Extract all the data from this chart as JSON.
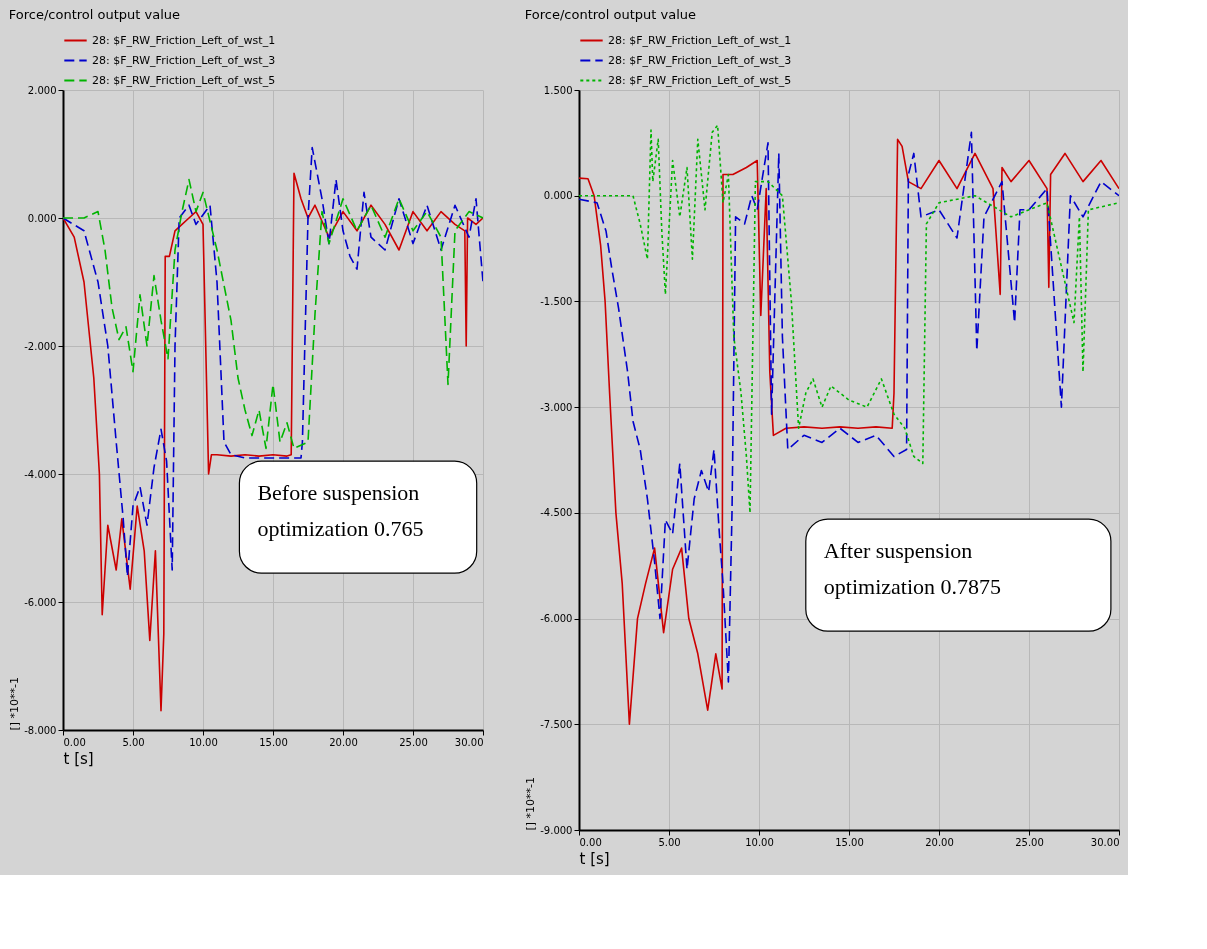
{
  "chart_data": [
    {
      "type": "line",
      "title": "Force/control output value",
      "xlabel": "t [s]",
      "ylabel": "[] *10**-1",
      "legend": "top left",
      "grid": true,
      "xlim": [
        0,
        30
      ],
      "ylim": [
        -8,
        2
      ],
      "xticks": [
        {
          "value": 0,
          "label": "0.00"
        },
        {
          "value": 5,
          "label": "5.00"
        },
        {
          "value": 10,
          "label": "10.00"
        },
        {
          "value": 15,
          "label": "15.00"
        },
        {
          "value": 20,
          "label": "20.00"
        },
        {
          "value": 25,
          "label": "25.00"
        },
        {
          "value": 30,
          "label": "30.00"
        }
      ],
      "yticks": [
        {
          "value": 2,
          "label": "2.000"
        },
        {
          "value": 0,
          "label": "0.000"
        },
        {
          "value": -2,
          "label": "-2.000"
        },
        {
          "value": -4,
          "label": "-4.000"
        },
        {
          "value": -6,
          "label": "-6.000"
        },
        {
          "value": -8,
          "label": "-8.000"
        }
      ],
      "annotations": [
        "Before suspension optimization 0.765"
      ],
      "series": [
        {
          "name": "28: $F_RW_Friction_Left_of_wst_1",
          "color": "#cc0000",
          "line_style": "solid",
          "x": [
            0,
            0.8,
            1.5,
            2.2,
            2.6,
            2.8,
            3.2,
            3.8,
            4.2,
            4.8,
            5.3,
            5.8,
            6.2,
            6.6,
            7.0,
            7.2,
            7.3,
            7.6,
            8.0,
            8.5,
            9.0,
            9.5,
            10.0,
            10.4,
            10.6,
            11.0,
            12.0,
            13.0,
            14.0,
            15.0,
            16.0,
            16.3,
            16.5,
            17.0,
            17.5,
            18.0,
            19.0,
            20.0,
            21.0,
            22.0,
            23.0,
            24.0,
            25.0,
            26.0,
            27.0,
            28.0,
            28.7,
            28.8,
            28.9,
            29.5,
            30.0
          ],
          "values": [
            0,
            -0.3,
            -1.0,
            -2.5,
            -4.0,
            -6.2,
            -4.8,
            -5.5,
            -4.7,
            -5.8,
            -4.5,
            -5.2,
            -6.6,
            -5.2,
            -7.7,
            -6.5,
            -0.6,
            -0.6,
            -0.2,
            -0.1,
            0.0,
            0.1,
            -0.1,
            -4.0,
            -3.7,
            -3.7,
            -3.72,
            -3.7,
            -3.72,
            -3.7,
            -3.72,
            -3.7,
            0.7,
            0.3,
            0.0,
            0.2,
            -0.3,
            0.1,
            -0.2,
            0.2,
            -0.1,
            -0.5,
            0.1,
            -0.2,
            0.1,
            -0.1,
            -0.2,
            -2.0,
            0.0,
            -0.1,
            0.0
          ]
        },
        {
          "name": "28: $F_RW_Friction_Left_of_wst_3",
          "color": "#0000cc",
          "line_style": "dashed",
          "x": [
            0,
            1.5,
            2.5,
            3.2,
            3.8,
            4.3,
            4.6,
            5.0,
            5.5,
            6.0,
            6.5,
            7.0,
            7.4,
            7.8,
            8.0,
            8.3,
            9.0,
            9.5,
            10.5,
            11.0,
            11.5,
            12.0,
            13.0,
            14.0,
            15.0,
            16.0,
            17.0,
            17.1,
            17.5,
            17.8,
            18.5,
            19.0,
            19.5,
            20.0,
            20.5,
            21.0,
            21.5,
            22.0,
            23.0,
            24.0,
            25.0,
            26.0,
            27.0,
            28.0,
            29.0,
            29.5,
            30.0
          ],
          "values": [
            0,
            -0.2,
            -1.0,
            -2.0,
            -3.5,
            -4.7,
            -5.6,
            -4.5,
            -4.2,
            -4.8,
            -3.9,
            -3.3,
            -3.8,
            -5.5,
            -2.0,
            0.0,
            0.2,
            -0.1,
            0.2,
            -1.0,
            -3.5,
            -3.7,
            -3.75,
            -3.75,
            -3.75,
            -3.75,
            -3.75,
            -3.5,
            0.0,
            1.1,
            0.3,
            -0.4,
            0.6,
            -0.2,
            -0.6,
            -0.8,
            0.4,
            -0.3,
            -0.5,
            0.3,
            -0.4,
            0.2,
            -0.5,
            0.2,
            -0.3,
            0.3,
            -1.0
          ]
        },
        {
          "name": "28: $F_RW_Friction_Left_of_wst_5",
          "color": "#00b400",
          "line_style": "dashed",
          "x": [
            0,
            1.5,
            2.5,
            3.0,
            3.5,
            4.0,
            4.5,
            5.0,
            5.5,
            6.0,
            6.5,
            7.0,
            7.5,
            8.0,
            8.5,
            9.0,
            9.5,
            10.0,
            11.0,
            12.0,
            12.5,
            13.0,
            13.5,
            14.0,
            14.5,
            15.0,
            15.5,
            16.0,
            16.5,
            17.5,
            18.0,
            18.5,
            19.0,
            20.0,
            21.0,
            22.0,
            23.0,
            24.0,
            25.0,
            26.0,
            27.0,
            27.5,
            28.0,
            29.0,
            30.0
          ],
          "values": [
            0,
            0,
            0.1,
            -0.5,
            -1.4,
            -1.9,
            -1.7,
            -2.4,
            -1.2,
            -2.0,
            -0.9,
            -1.6,
            -2.2,
            -0.5,
            0.1,
            0.6,
            0.1,
            0.4,
            -0.5,
            -1.6,
            -2.5,
            -3.0,
            -3.4,
            -3.0,
            -3.6,
            -2.6,
            -3.5,
            -3.2,
            -3.6,
            -3.5,
            -1.5,
            0.1,
            -0.4,
            0.3,
            -0.2,
            0.2,
            -0.3,
            0.3,
            -0.2,
            0.1,
            -0.3,
            -2.6,
            -0.2,
            0.1,
            0.0
          ]
        }
      ]
    },
    {
      "type": "line",
      "title": "Force/control output value",
      "xlabel": "t [s]",
      "ylabel": "[] *10**-1",
      "legend": "top left",
      "grid": true,
      "xlim": [
        0,
        30
      ],
      "ylim": [
        -9,
        1.5
      ],
      "xticks": [
        {
          "value": 0,
          "label": "0.00"
        },
        {
          "value": 5,
          "label": "5.00"
        },
        {
          "value": 10,
          "label": "10.00"
        },
        {
          "value": 15,
          "label": "15.00"
        },
        {
          "value": 20,
          "label": "20.00"
        },
        {
          "value": 25,
          "label": "25.00"
        },
        {
          "value": 30,
          "label": "30.00"
        }
      ],
      "yticks": [
        {
          "value": 1.5,
          "label": "1.500"
        },
        {
          "value": 0,
          "label": "0.000"
        },
        {
          "value": -1.5,
          "label": "-1.500"
        },
        {
          "value": -3,
          "label": "-3.000"
        },
        {
          "value": -4.5,
          "label": "-4.500"
        },
        {
          "value": -6,
          "label": "-6.000"
        },
        {
          "value": -7.5,
          "label": "-7.500"
        },
        {
          "value": -9,
          "label": "-9.000"
        }
      ],
      "annotations": [
        "After suspension optimization 0.7875"
      ],
      "series": [
        {
          "name": "28: $F_RW_Friction_Left_of_wst_1",
          "color": "#cc0000",
          "line_style": "solid",
          "x": [
            0,
            0.5,
            0.84,
            1.2,
            1.45,
            1.7,
            2.05,
            2.4,
            2.8,
            3.25,
            3.7,
            4.2,
            4.7,
            5.2,
            5.7,
            6.1,
            6.6,
            7.15,
            7.6,
            7.95,
            8.0,
            8.55,
            9.3,
            9.9,
            10.1,
            10.4,
            10.6,
            10.8,
            11.5,
            12.5,
            13.5,
            14.5,
            15.5,
            16.5,
            17.4,
            17.5,
            17.7,
            17.95,
            18.3,
            19.0,
            20.0,
            21.0,
            22.0,
            23.0,
            23.4,
            23.5,
            24.0,
            25.0,
            26.0,
            26.1,
            26.2,
            27.0,
            28.0,
            29.0,
            30.0
          ],
          "values": [
            0.25,
            0.24,
            0.0,
            -0.7,
            -1.5,
            -2.8,
            -4.5,
            -5.5,
            -7.5,
            -6.0,
            -5.5,
            -5.0,
            -6.2,
            -5.3,
            -5.0,
            -6.0,
            -6.5,
            -7.3,
            -6.5,
            -7.0,
            0.3,
            0.3,
            0.4,
            0.5,
            -1.7,
            0.1,
            -2.5,
            -3.4,
            -3.3,
            -3.28,
            -3.3,
            -3.28,
            -3.3,
            -3.28,
            -3.3,
            -2.8,
            0.8,
            0.7,
            0.2,
            0.1,
            0.5,
            0.1,
            0.6,
            0.1,
            -1.4,
            0.4,
            0.2,
            0.5,
            0.1,
            -1.3,
            0.3,
            0.6,
            0.2,
            0.5,
            0.1
          ]
        },
        {
          "name": "28: $F_RW_Friction_Left_of_wst_3",
          "color": "#0000cc",
          "line_style": "dashed",
          "x": [
            0,
            1.0,
            1.5,
            1.8,
            2.2,
            2.7,
            3.0,
            3.4,
            3.8,
            4.2,
            4.5,
            4.8,
            5.2,
            5.6,
            6.0,
            6.4,
            6.8,
            7.2,
            7.5,
            7.8,
            8.0,
            8.3,
            8.5,
            8.7,
            9.2,
            9.6,
            9.9,
            10.5,
            10.7,
            11.1,
            11.3,
            11.6,
            12.5,
            13.5,
            14.5,
            15.5,
            16.5,
            17.5,
            18.2,
            18.3,
            18.6,
            19.0,
            20.0,
            21.0,
            21.8,
            22.1,
            22.5,
            23.5,
            24.2,
            24.5,
            25.0,
            26.0,
            26.8,
            27.3,
            28.0,
            29.0,
            30.0
          ],
          "values": [
            -0.05,
            -0.1,
            -0.5,
            -1.0,
            -1.6,
            -2.5,
            -3.2,
            -3.6,
            -4.3,
            -5.2,
            -6.0,
            -4.6,
            -4.8,
            -3.8,
            -5.3,
            -4.3,
            -3.9,
            -4.2,
            -3.6,
            -4.8,
            -5.5,
            -6.9,
            -4.5,
            -0.3,
            -0.4,
            0.0,
            -0.2,
            0.75,
            -3.1,
            0.6,
            -2.0,
            -3.6,
            -3.4,
            -3.5,
            -3.3,
            -3.5,
            -3.4,
            -3.7,
            -3.6,
            0.3,
            0.6,
            -0.3,
            -0.2,
            -0.6,
            0.9,
            -2.2,
            -0.3,
            0.2,
            -1.8,
            -0.2,
            -0.2,
            0.1,
            -3.0,
            0.0,
            -0.3,
            0.2,
            0.0
          ]
        },
        {
          "name": "28: $F_RW_Friction_Left_of_wst_5",
          "color": "#00b400",
          "line_style": "dotted",
          "x": [
            0,
            3.0,
            3.4,
            3.8,
            4.0,
            4.1,
            4.4,
            4.6,
            4.8,
            5.2,
            5.6,
            6.0,
            6.3,
            6.6,
            7.0,
            7.4,
            7.7,
            8.0,
            8.3,
            8.6,
            9.0,
            9.3,
            9.5,
            9.8,
            10.5,
            11.3,
            11.8,
            12.2,
            12.6,
            13.0,
            13.5,
            14.0,
            15.0,
            16.0,
            16.8,
            17.5,
            18.1,
            18.6,
            19.1,
            19.3,
            20.0,
            22.0,
            24.0,
            26.0,
            27.5,
            27.8,
            28.0,
            28.3,
            30.0
          ],
          "values": [
            0,
            0.0,
            -0.4,
            -0.9,
            0.93,
            0.2,
            0.8,
            -0.5,
            -1.4,
            0.5,
            -0.3,
            0.4,
            -0.9,
            0.8,
            -0.2,
            0.9,
            1.0,
            -0.1,
            0.3,
            -2.0,
            -2.8,
            -3.7,
            -4.5,
            0.2,
            0.2,
            0.0,
            -1.5,
            -3.3,
            -2.8,
            -2.6,
            -3.0,
            -2.7,
            -2.9,
            -3.0,
            -2.6,
            -3.1,
            -3.3,
            -3.7,
            -3.8,
            -0.4,
            -0.1,
            0.0,
            -0.3,
            -0.1,
            -1.8,
            -0.3,
            -2.5,
            -0.2,
            -0.1
          ]
        }
      ]
    }
  ]
}
